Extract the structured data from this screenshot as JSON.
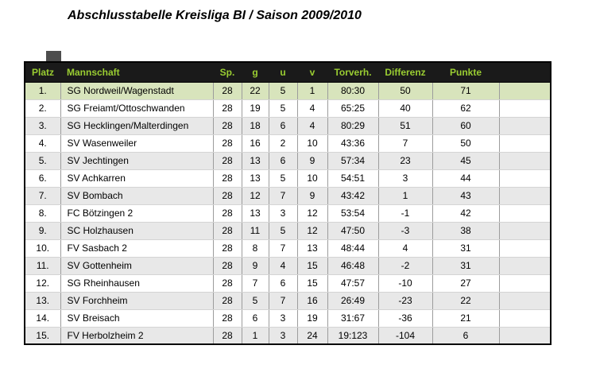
{
  "chart_data": {
    "type": "table",
    "title": "Abschlusstabelle Kreisliga BI / Saison 2009/2010",
    "columns": [
      "Platz",
      "Mannschaft",
      "Sp.",
      "g",
      "u",
      "v",
      "Torverh.",
      "Differenz",
      "Punkte"
    ],
    "rows": [
      [
        "1.",
        "SG Nordweil/Wagenstadt",
        "28",
        "22",
        "5",
        "1",
        "80:30",
        "50",
        "71"
      ],
      [
        "2.",
        "SG Freiamt/Ottoschwanden",
        "28",
        "19",
        "5",
        "4",
        "65:25",
        "40",
        "62"
      ],
      [
        "3.",
        "SG Hecklingen/Malterdingen",
        "28",
        "18",
        "6",
        "4",
        "80:29",
        "51",
        "60"
      ],
      [
        "4.",
        "SV Wasenweiler",
        "28",
        "16",
        "2",
        "10",
        "43:36",
        "7",
        "50"
      ],
      [
        "5.",
        "SV Jechtingen",
        "28",
        "13",
        "6",
        "9",
        "57:34",
        "23",
        "45"
      ],
      [
        "6.",
        "SV Achkarren",
        "28",
        "13",
        "5",
        "10",
        "54:51",
        "3",
        "44"
      ],
      [
        "7.",
        "SV Bombach",
        "28",
        "12",
        "7",
        "9",
        "43:42",
        "1",
        "43"
      ],
      [
        "8.",
        "FC Bötzingen 2",
        "28",
        "13",
        "3",
        "12",
        "53:54",
        "-1",
        "42"
      ],
      [
        "9.",
        "SC Holzhausen",
        "28",
        "11",
        "5",
        "12",
        "47:50",
        "-3",
        "38"
      ],
      [
        "10.",
        "FV Sasbach 2",
        "28",
        "8",
        "7",
        "13",
        "48:44",
        "4",
        "31"
      ],
      [
        "11.",
        "SV Gottenheim",
        "28",
        "9",
        "4",
        "15",
        "46:48",
        "-2",
        "31"
      ],
      [
        "12.",
        "SG Rheinhausen",
        "28",
        "7",
        "6",
        "15",
        "47:57",
        "-10",
        "27"
      ],
      [
        "13.",
        "SV Forchheim",
        "28",
        "5",
        "7",
        "16",
        "26:49",
        "-23",
        "22"
      ],
      [
        "14.",
        "SV Breisach",
        "28",
        "6",
        "3",
        "19",
        "31:67",
        "-36",
        "21"
      ],
      [
        "15.",
        "FV Herbolzheim 2",
        "28",
        "1",
        "3",
        "24",
        "19:123",
        "-104",
        "6"
      ]
    ],
    "highlight_row_index": 0,
    "colors": {
      "header_bg": "#1a1a1a",
      "header_text": "#9acd32",
      "highlight_row_bg": "#d8e4bc",
      "alt_row_bg": "#e8e8e8",
      "border": "#000000"
    }
  }
}
